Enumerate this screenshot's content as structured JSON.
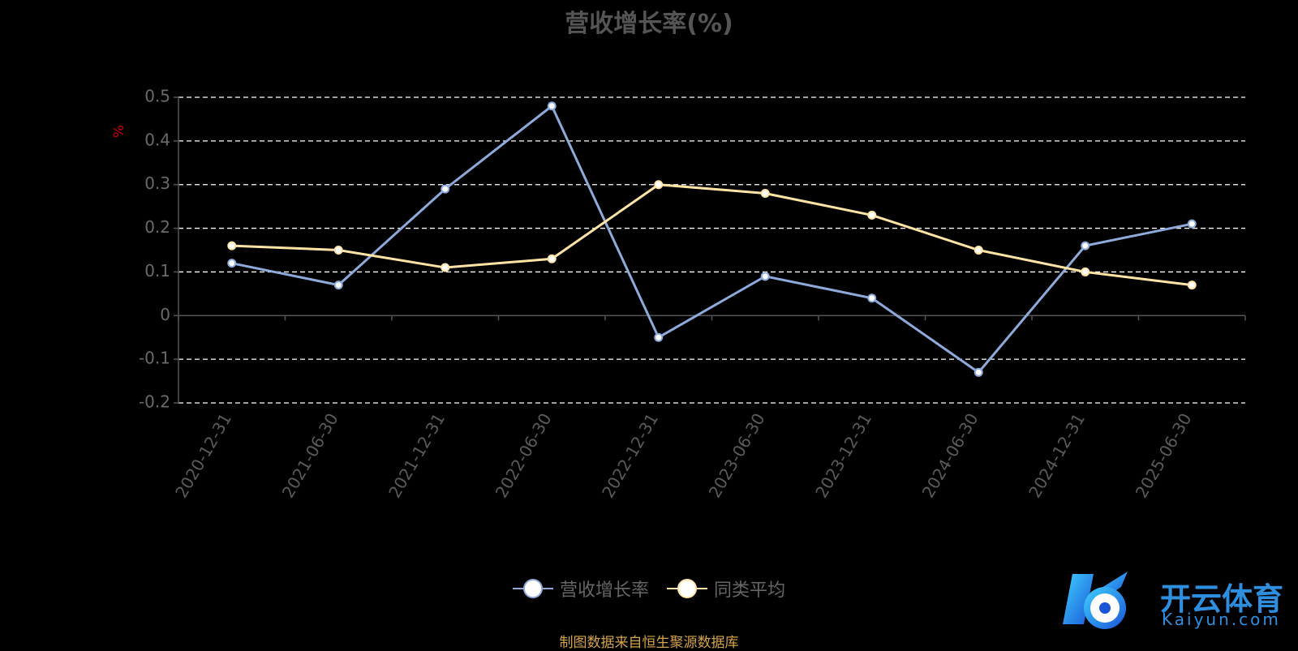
{
  "chart_data": {
    "type": "line",
    "title": "营收增长率(%)",
    "ylabel": "%",
    "categories": [
      "2020-12-31",
      "2021-06-30",
      "2021-12-31",
      "2022-06-30",
      "2022-12-31",
      "2023-06-30",
      "2023-12-31",
      "2024-06-30",
      "2024-12-31",
      "2025-06-30"
    ],
    "series": [
      {
        "name": "营收增长率",
        "color": "#8eaadb",
        "values": [
          0.12,
          0.07,
          0.29,
          0.48,
          -0.05,
          0.09,
          0.04,
          -0.13,
          0.16,
          0.21
        ]
      },
      {
        "name": "同类平均",
        "color": "#ffe4a6",
        "values": [
          0.16,
          0.15,
          0.11,
          0.13,
          0.3,
          0.28,
          0.23,
          0.15,
          0.1,
          0.07
        ]
      }
    ],
    "ylim": [
      -0.2,
      0.5
    ],
    "yticks": [
      -0.2,
      -0.1,
      0,
      0.1,
      0.2,
      0.3,
      0.4,
      0.5
    ],
    "ytick_labels": [
      "-0.2",
      "-0.1",
      "0",
      "0.1",
      "0.2",
      "0.3",
      "0.4",
      "0.5"
    ],
    "grid": true,
    "legend_position": "bottom-center"
  },
  "footer_note": "制图数据来自恒生聚源数据库",
  "brand": {
    "name": "开云体育",
    "domain": "Kaiyun.com"
  }
}
